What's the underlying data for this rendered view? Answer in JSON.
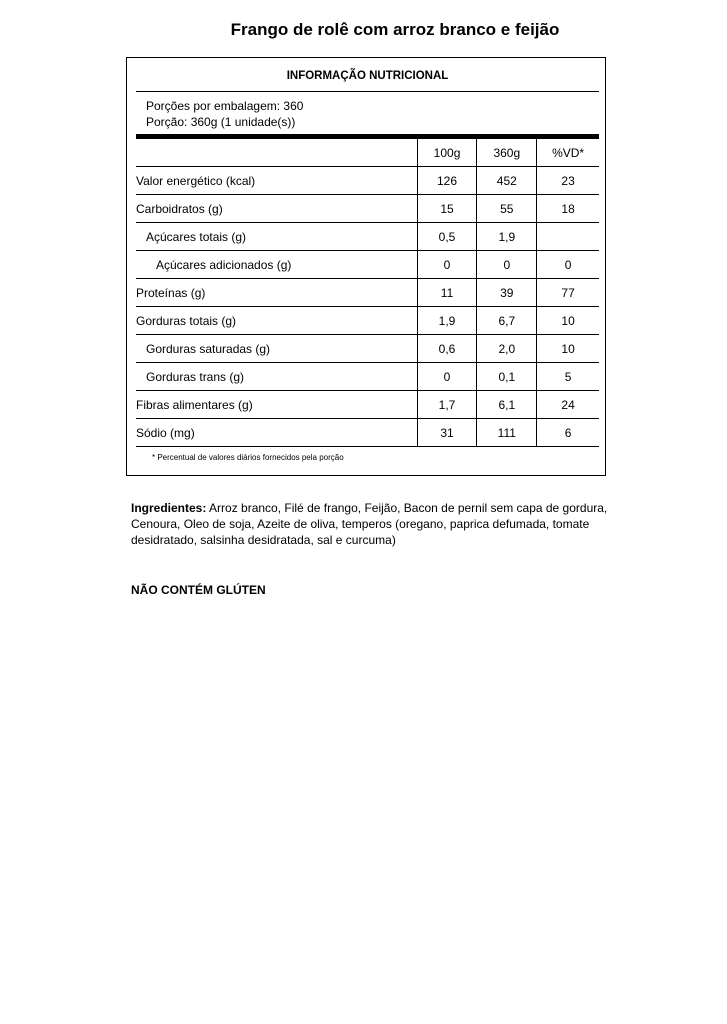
{
  "title": "Frango de rolê com arroz branco e feijão",
  "table": {
    "heading": "INFORMAÇÃO NUTRICIONAL",
    "portions_per_package": "Porções por embalagem: 360",
    "portion": "Porção: 360g (1 unidade(s))",
    "columns": [
      "",
      "100g",
      "360g",
      "%VD*"
    ],
    "rows": [
      {
        "label": "Valor energético (kcal)",
        "indent": 0,
        "v100": "126",
        "vportion": "452",
        "vd": "23"
      },
      {
        "label": "Carboidratos (g)",
        "indent": 0,
        "v100": "15",
        "vportion": "55",
        "vd": "18"
      },
      {
        "label": "Açúcares totais (g)",
        "indent": 1,
        "v100": "0,5",
        "vportion": "1,9",
        "vd": ""
      },
      {
        "label": "Açúcares adicionados (g)",
        "indent": 2,
        "v100": "0",
        "vportion": "0",
        "vd": "0"
      },
      {
        "label": "Proteínas (g)",
        "indent": 0,
        "v100": "11",
        "vportion": "39",
        "vd": "77"
      },
      {
        "label": "Gorduras totais (g)",
        "indent": 0,
        "v100": "1,9",
        "vportion": "6,7",
        "vd": "10"
      },
      {
        "label": "Gorduras saturadas (g)",
        "indent": 1,
        "v100": "0,6",
        "vportion": "2,0",
        "vd": "10"
      },
      {
        "label": "Gorduras trans (g)",
        "indent": 1,
        "v100": "0",
        "vportion": "0,1",
        "vd": "5"
      },
      {
        "label": "Fibras alimentares (g)",
        "indent": 0,
        "v100": "1,7",
        "vportion": "6,1",
        "vd": "24"
      },
      {
        "label": "Sódio (mg)",
        "indent": 0,
        "v100": "31",
        "vportion": "111",
        "vd": "6"
      }
    ],
    "footnote": "* Percentual de valores diários fornecidos pela porção"
  },
  "ingredients": {
    "label": "Ingredientes:",
    "text": " Arroz branco, Filé de frango, Feijão, Bacon de pernil sem capa de gordura, Cenoura, Oleo de soja, Azeite de oliva, temperos (oregano, paprica defumada, tomate desidratado, salsinha desidratada, sal e curcuma)"
  },
  "gluten_notice": "NÃO CONTÉM GLÚTEN"
}
